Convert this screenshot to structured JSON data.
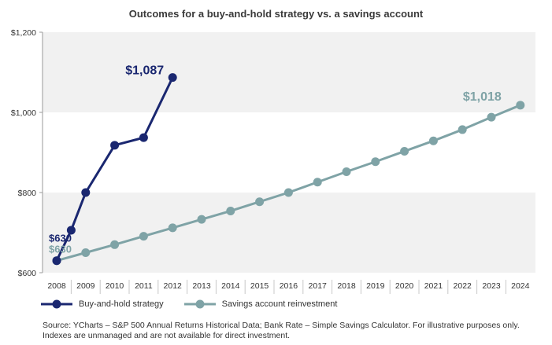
{
  "chart_data": {
    "type": "line",
    "title": "Outcomes for a buy-and-hold strategy vs. a savings account",
    "xlabel": "",
    "ylabel": "",
    "ylim": [
      600,
      1200
    ],
    "yticks": [
      600,
      800,
      1000,
      1200
    ],
    "ytick_labels": [
      "$600",
      "$800",
      "$1,000",
      "$1,200"
    ],
    "categories": [
      "2008",
      "2009",
      "2010",
      "2011",
      "2012",
      "2013",
      "2014",
      "2015",
      "2016",
      "2017",
      "2018",
      "2019",
      "2020",
      "2021",
      "2022",
      "2023",
      "2024"
    ],
    "series": [
      {
        "name": "Buy-and-hold strategy",
        "color": "#1a2770",
        "points": [
          {
            "x": 2008,
            "y": 630
          },
          {
            "x": 2008.5,
            "y": 706
          },
          {
            "x": 2009,
            "y": 800
          },
          {
            "x": 2010,
            "y": 918
          },
          {
            "x": 2011,
            "y": 937
          },
          {
            "x": 2012,
            "y": 1087
          }
        ],
        "start_label": "$630",
        "end_label": "$1,087"
      },
      {
        "name": "Savings account reinvestment",
        "color": "#7fa3a6",
        "points": [
          {
            "x": 2008,
            "y": 630
          },
          {
            "x": 2009,
            "y": 650
          },
          {
            "x": 2010,
            "y": 670
          },
          {
            "x": 2011,
            "y": 691
          },
          {
            "x": 2012,
            "y": 712
          },
          {
            "x": 2013,
            "y": 733
          },
          {
            "x": 2014,
            "y": 754
          },
          {
            "x": 2015,
            "y": 777
          },
          {
            "x": 2016,
            "y": 800
          },
          {
            "x": 2017,
            "y": 826
          },
          {
            "x": 2018,
            "y": 852
          },
          {
            "x": 2019,
            "y": 877
          },
          {
            "x": 2020,
            "y": 903
          },
          {
            "x": 2021,
            "y": 929
          },
          {
            "x": 2022,
            "y": 957
          },
          {
            "x": 2023,
            "y": 988
          },
          {
            "x": 2024,
            "y": 1018
          }
        ],
        "start_label": "$630",
        "end_label": "$1,018"
      }
    ],
    "bands": "alternating light gray above $1,000 and between $600-$800",
    "legend_position": "bottom-left",
    "source_note": "Source: YCharts – S&P 500 Annual Returns Historical Data; Bank Rate – Simple Savings Calculator. For illustrative purposes only. Indexes are unmanaged and are not available for direct investment."
  }
}
